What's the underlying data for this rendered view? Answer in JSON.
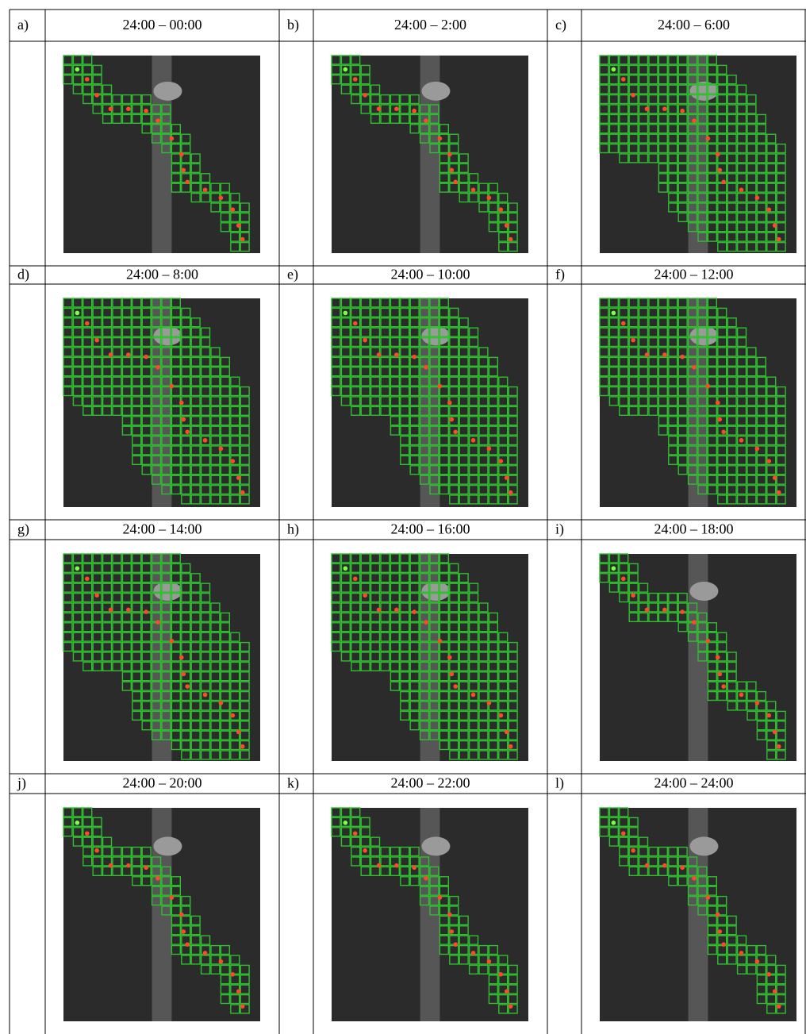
{
  "panels": [
    {
      "label": "a)",
      "title": "24:00 – 00:00"
    },
    {
      "label": "b)",
      "title": "24:00 – 2:00"
    },
    {
      "label": "c)",
      "title": "24:00 – 6:00"
    },
    {
      "label": "d)",
      "title": "24:00 – 8:00"
    },
    {
      "label": "e)",
      "title": "24:00 – 10:00"
    },
    {
      "label": "f)",
      "title": "24:00 – 12:00"
    },
    {
      "label": "g)",
      "title": "24:00 – 14:00"
    },
    {
      "label": "h)",
      "title": "24:00 – 16:00"
    },
    {
      "label": "i)",
      "title": "24:00 – 18:00"
    },
    {
      "label": "j)",
      "title": "24:00 – 20:00"
    },
    {
      "label": "k)",
      "title": "24:00 – 22:00"
    },
    {
      "label": "l)",
      "title": "24:00 – 24:00"
    }
  ]
}
